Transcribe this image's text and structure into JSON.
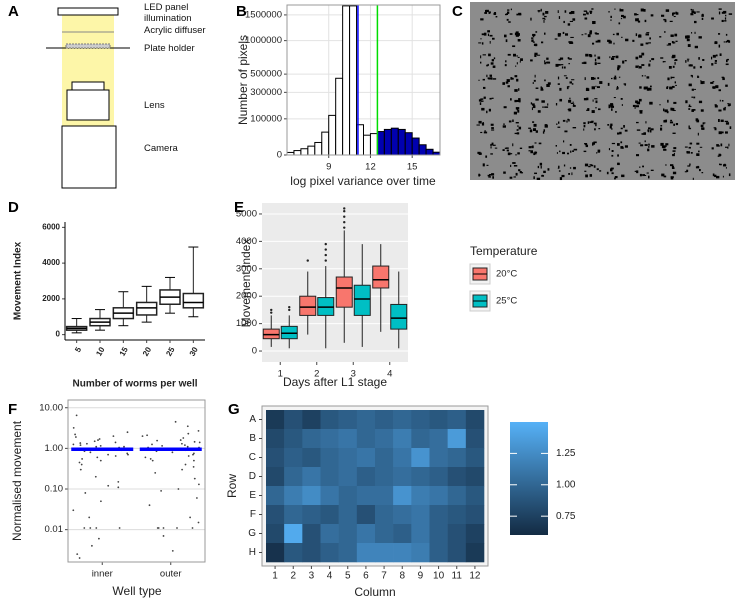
{
  "diagram": {
    "panel": "A",
    "labels": [
      "LED panel illumination",
      "Acrylic diffuser",
      "Plate holder",
      "Lens",
      "Camera"
    ]
  },
  "image": {
    "panel": "C"
  },
  "chart_data": [
    {
      "type": "histogram",
      "panel": "B",
      "xlabel": "log pixel variance over time",
      "ylabel": "Number of pixels",
      "bins": [
        6,
        6.5,
        7,
        7.5,
        8,
        8.5,
        9,
        9.5,
        10,
        10.5,
        11,
        11.5,
        12,
        12.5,
        13,
        13.5,
        14,
        14.5,
        15,
        15.5,
        16,
        16.5,
        17
      ],
      "values": [
        500,
        1500,
        3000,
        6000,
        12000,
        40000,
        120000,
        450000,
        1700000,
        1700000,
        70000,
        30000,
        35000,
        42000,
        50000,
        55000,
        50000,
        38000,
        22000,
        8000,
        2500,
        600
      ],
      "colors": [
        "#ffffff",
        "#ffffff",
        "#ffffff",
        "#ffffff",
        "#ffffff",
        "#ffffff",
        "#ffffff",
        "#ffffff",
        "#ffffff",
        "#ffffff",
        "#ffffff",
        "#ffffff",
        "#ffffff",
        "#0000b0",
        "#0000b0",
        "#0000b0",
        "#0000b0",
        "#0000b0",
        "#0000b0",
        "#0000b0",
        "#0000b0",
        "#0000b0"
      ],
      "xlim": [
        6,
        17
      ],
      "xticks": [
        9,
        12,
        15
      ],
      "ylim": [
        0,
        1720000
      ],
      "yticks": [
        0,
        100000,
        300000,
        500000,
        1000000,
        1500000
      ],
      "yscale": "sqrt",
      "grid": true,
      "vlines": [
        {
          "value": 11.1,
          "color": "#0000ff"
        },
        {
          "value": 12.5,
          "color": "#00dd00"
        }
      ]
    },
    {
      "type": "boxplot",
      "panel": "D",
      "xlabel": "Number of worms per well",
      "ylabel": "Movement Index",
      "categories": [
        "5",
        "10",
        "15",
        "20",
        "25",
        "30"
      ],
      "ylim": [
        -300,
        6300
      ],
      "yticks": [
        0,
        2000,
        4000,
        6000
      ],
      "grid": false,
      "series": [
        {
          "color": "#ffffff",
          "min": [
            100,
            250,
            500,
            700,
            1200,
            1000
          ],
          "q1": [
            250,
            500,
            900,
            1100,
            1700,
            1500
          ],
          "median": [
            350,
            700,
            1200,
            1500,
            2100,
            1800
          ],
          "q3": [
            450,
            900,
            1500,
            1800,
            2500,
            2300
          ],
          "max": [
            900,
            1400,
            2400,
            2700,
            3200,
            4900
          ],
          "outliers": [
            [],
            [],
            [],
            [],
            [],
            []
          ]
        }
      ]
    },
    {
      "type": "boxplot",
      "panel": "E",
      "xlabel": "Days after L1 stage",
      "ylabel": "Movement Index",
      "categories": [
        "1",
        "2",
        "3",
        "4"
      ],
      "ylim": [
        -400,
        5400
      ],
      "yticks": [
        0,
        1000,
        2000,
        3000,
        4000,
        5000
      ],
      "grid": true,
      "legend_title": "Temperature",
      "legend": "right",
      "series": [
        {
          "name": "20°C",
          "color": "#f8766d",
          "min": [
            150,
            600,
            300,
            700
          ],
          "q1": [
            450,
            1300,
            1600,
            2300
          ],
          "median": [
            600,
            1600,
            2300,
            2600
          ],
          "q3": [
            800,
            2000,
            2700,
            3100
          ],
          "max": [
            1300,
            2900,
            4400,
            3900
          ],
          "outliers": [
            [
              1400,
              1500
            ],
            [
              3300
            ],
            [
              4500,
              4700,
              4900,
              5100,
              5200
            ],
            []
          ]
        },
        {
          "name": "25°C",
          "color": "#00bfc4",
          "min": [
            100,
            100,
            150,
            100
          ],
          "q1": [
            450,
            1300,
            1300,
            800
          ],
          "median": [
            650,
            1600,
            1900,
            1200
          ],
          "q3": [
            900,
            1950,
            2400,
            1700
          ],
          "max": [
            1300,
            3100,
            3900,
            2900
          ],
          "outliers": [
            [
              1500,
              1600
            ],
            [
              3300,
              3500,
              3700,
              3900
            ],
            [],
            []
          ]
        }
      ]
    },
    {
      "type": "strip",
      "panel": "F",
      "xlabel": "Well type",
      "ylabel": "Normalised movement",
      "categories": [
        "inner",
        "outer"
      ],
      "yscale": "log",
      "ylim": [
        0.0016,
        15.5
      ],
      "grid": true,
      "yticks": [
        0.01,
        {
          "value": 0.1,
          "label": "0.10"
        },
        {
          "value": 1,
          "label": "1.00"
        },
        {
          "value": 10,
          "label": "10.00"
        }
      ],
      "point_color": "#444444",
      "median_color": "#0000ff",
      "medians": [
        0.95,
        0.95
      ],
      "values": [
        [
          0.95,
          1.2,
          0.8,
          1.5,
          0.7,
          1.1,
          2.0,
          0.6,
          1.3,
          0.9,
          1.7,
          0.5,
          1.05,
          2.5,
          0.4,
          1.4,
          0.85,
          3.2,
          0.3,
          1.0,
          0.75,
          1.9,
          0.65,
          1.15,
          6.5,
          0.2,
          0.12,
          0.08,
          0.05,
          0.011,
          0.011,
          0.011,
          0.011,
          0.03,
          0.02,
          0.006,
          0.004,
          0.0025,
          0.002,
          0.11,
          0.15,
          1.25,
          0.9,
          2.2,
          0.55,
          1.6,
          0.45,
          1.35,
          0.7,
          1.1
        ],
        [
          0.9,
          1.3,
          0.75,
          1.6,
          0.65,
          1.05,
          2.1,
          0.55,
          1.25,
          0.95,
          1.8,
          0.5,
          1.0,
          2.7,
          0.35,
          1.45,
          0.85,
          3.5,
          0.25,
          1.1,
          0.7,
          2.0,
          0.6,
          1.2,
          0.18,
          0.1,
          0.06,
          0.04,
          0.011,
          0.011,
          0.011,
          0.011,
          0.011,
          0.02,
          0.015,
          0.007,
          0.003,
          0.09,
          0.13,
          1.15,
          0.95,
          2.3,
          0.5,
          1.55,
          0.4,
          1.4,
          0.8,
          1.05,
          4.5,
          0.3
        ]
      ]
    },
    {
      "type": "heatmap",
      "panel": "G",
      "xlabel": "Column",
      "ylabel": "Row",
      "x_categories": [
        "1",
        "2",
        "3",
        "4",
        "5",
        "6",
        "7",
        "8",
        "9",
        "10",
        "11",
        "12"
      ],
      "y_categories": [
        "A",
        "B",
        "C",
        "D",
        "E",
        "F",
        "G",
        "H"
      ],
      "colors": [
        "#132b43",
        "#56b1f7"
      ],
      "clim": [
        0.6,
        1.5
      ],
      "cticks": [
        0.75,
        {
          "value": 1,
          "label": "1.00"
        },
        1.25
      ],
      "values": [
        [
          0.7,
          0.85,
          0.75,
          0.9,
          0.95,
          1.0,
          0.95,
          1.0,
          0.95,
          0.9,
          0.95,
          0.8
        ],
        [
          0.8,
          0.9,
          1.0,
          1.05,
          1.1,
          1.0,
          1.05,
          1.15,
          1.0,
          1.05,
          1.35,
          0.85
        ],
        [
          0.85,
          0.95,
          0.9,
          1.0,
          1.05,
          1.1,
          1.0,
          1.1,
          1.3,
          1.05,
          1.0,
          0.9
        ],
        [
          0.8,
          1.0,
          1.1,
          1.0,
          1.05,
          0.95,
          1.0,
          1.05,
          1.0,
          0.95,
          0.85,
          0.8
        ],
        [
          1.0,
          1.15,
          1.25,
          1.1,
          1.0,
          1.05,
          1.05,
          1.3,
          1.15,
          1.1,
          1.0,
          0.9
        ],
        [
          0.85,
          1.0,
          0.95,
          0.9,
          1.0,
          0.85,
          1.0,
          1.05,
          1.1,
          0.95,
          0.9,
          0.85
        ],
        [
          0.8,
          1.45,
          0.85,
          1.05,
          1.0,
          1.1,
          1.0,
          0.95,
          1.1,
          0.95,
          0.85,
          0.75
        ],
        [
          0.65,
          0.9,
          0.85,
          0.95,
          1.0,
          1.2,
          1.2,
          1.2,
          1.15,
          0.95,
          0.85,
          0.7
        ]
      ]
    }
  ]
}
